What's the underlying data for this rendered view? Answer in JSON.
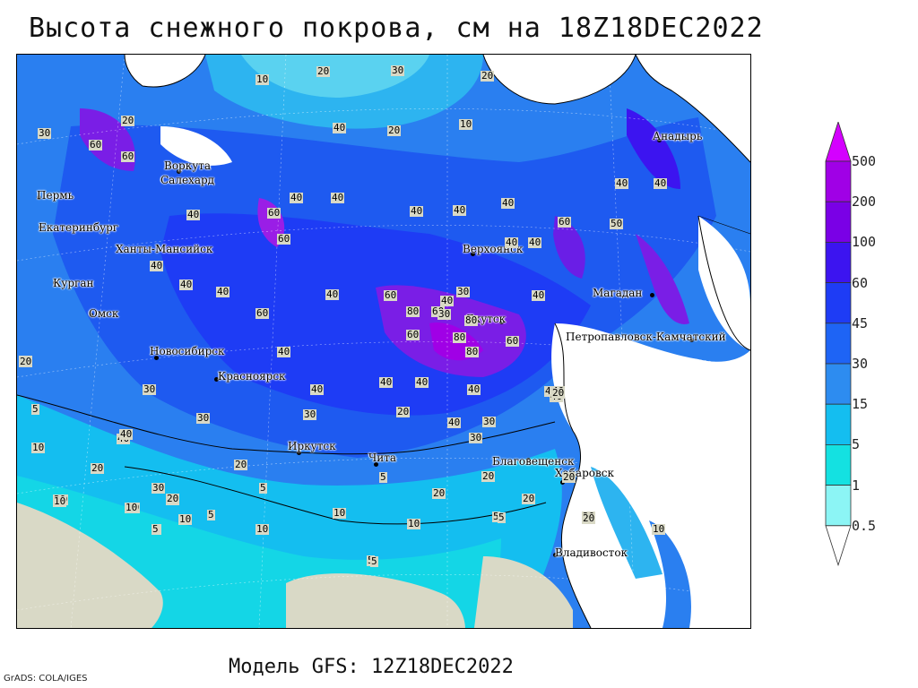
{
  "title": "Высота снежного покрова, см на 18Z18DEC2022",
  "model_label": "Модель GFS: 12Z18DEC2022",
  "credit": "GrADS: COLA/IGES",
  "legend": {
    "levels": [
      "500",
      "200",
      "100",
      "60",
      "45",
      "30",
      "15",
      "5",
      "1",
      "0.5"
    ],
    "colors": [
      "#d400ff",
      "#a000e6",
      "#7a00e6",
      "#3c14f0",
      "#1e3cf5",
      "#1e64f5",
      "#2d8cf0",
      "#14bef0",
      "#14e1e1",
      "#8cf5f5",
      "#ffffff"
    ]
  },
  "cities": [
    {
      "name": "Анадырь"
    },
    {
      "name": "Воркута"
    },
    {
      "name": "Салехард"
    },
    {
      "name": "Пермь"
    },
    {
      "name": "Екатеринбург"
    },
    {
      "name": "Ханты-Мансийск"
    },
    {
      "name": "Курган"
    },
    {
      "name": "Омск"
    },
    {
      "name": "Новосибирск"
    },
    {
      "name": "Красноярск"
    },
    {
      "name": "Верхоянск"
    },
    {
      "name": "Магадан"
    },
    {
      "name": "Якутск"
    },
    {
      "name": "Петропавловск-Камчатский"
    },
    {
      "name": "Иркутск"
    },
    {
      "name": "Чита"
    },
    {
      "name": "Благовещенск"
    },
    {
      "name": "Хабаровск"
    },
    {
      "name": "Владивосток"
    }
  ],
  "contour_labels": [
    "10",
    "30",
    "20",
    "20",
    "20",
    "10",
    "30",
    "40",
    "20",
    "60",
    "60",
    "40",
    "60",
    "40",
    "40",
    "40",
    "40",
    "40",
    "40",
    "50",
    "40",
    "60",
    "40",
    "40",
    "60",
    "40",
    "40",
    "40",
    "60",
    "40",
    "40",
    "30",
    "40",
    "60",
    "80",
    "60",
    "30",
    "80",
    "60",
    "80",
    "60",
    "80",
    "40",
    "40",
    "40",
    "20",
    "30",
    "40",
    "40",
    "40",
    "40",
    "30",
    "20",
    "40",
    "40",
    "30",
    "30",
    "20",
    "20",
    "5",
    "10",
    "20",
    "40",
    "10",
    "20",
    "10",
    "5",
    "10",
    "5",
    "5",
    "20",
    "10",
    "5",
    "5",
    "20",
    "20",
    "40",
    "20",
    "30",
    "20",
    "20",
    "10",
    "20",
    "30",
    "5",
    "5",
    "5",
    "10",
    "10",
    "10",
    "5",
    "10",
    "20",
    "20"
  ]
}
